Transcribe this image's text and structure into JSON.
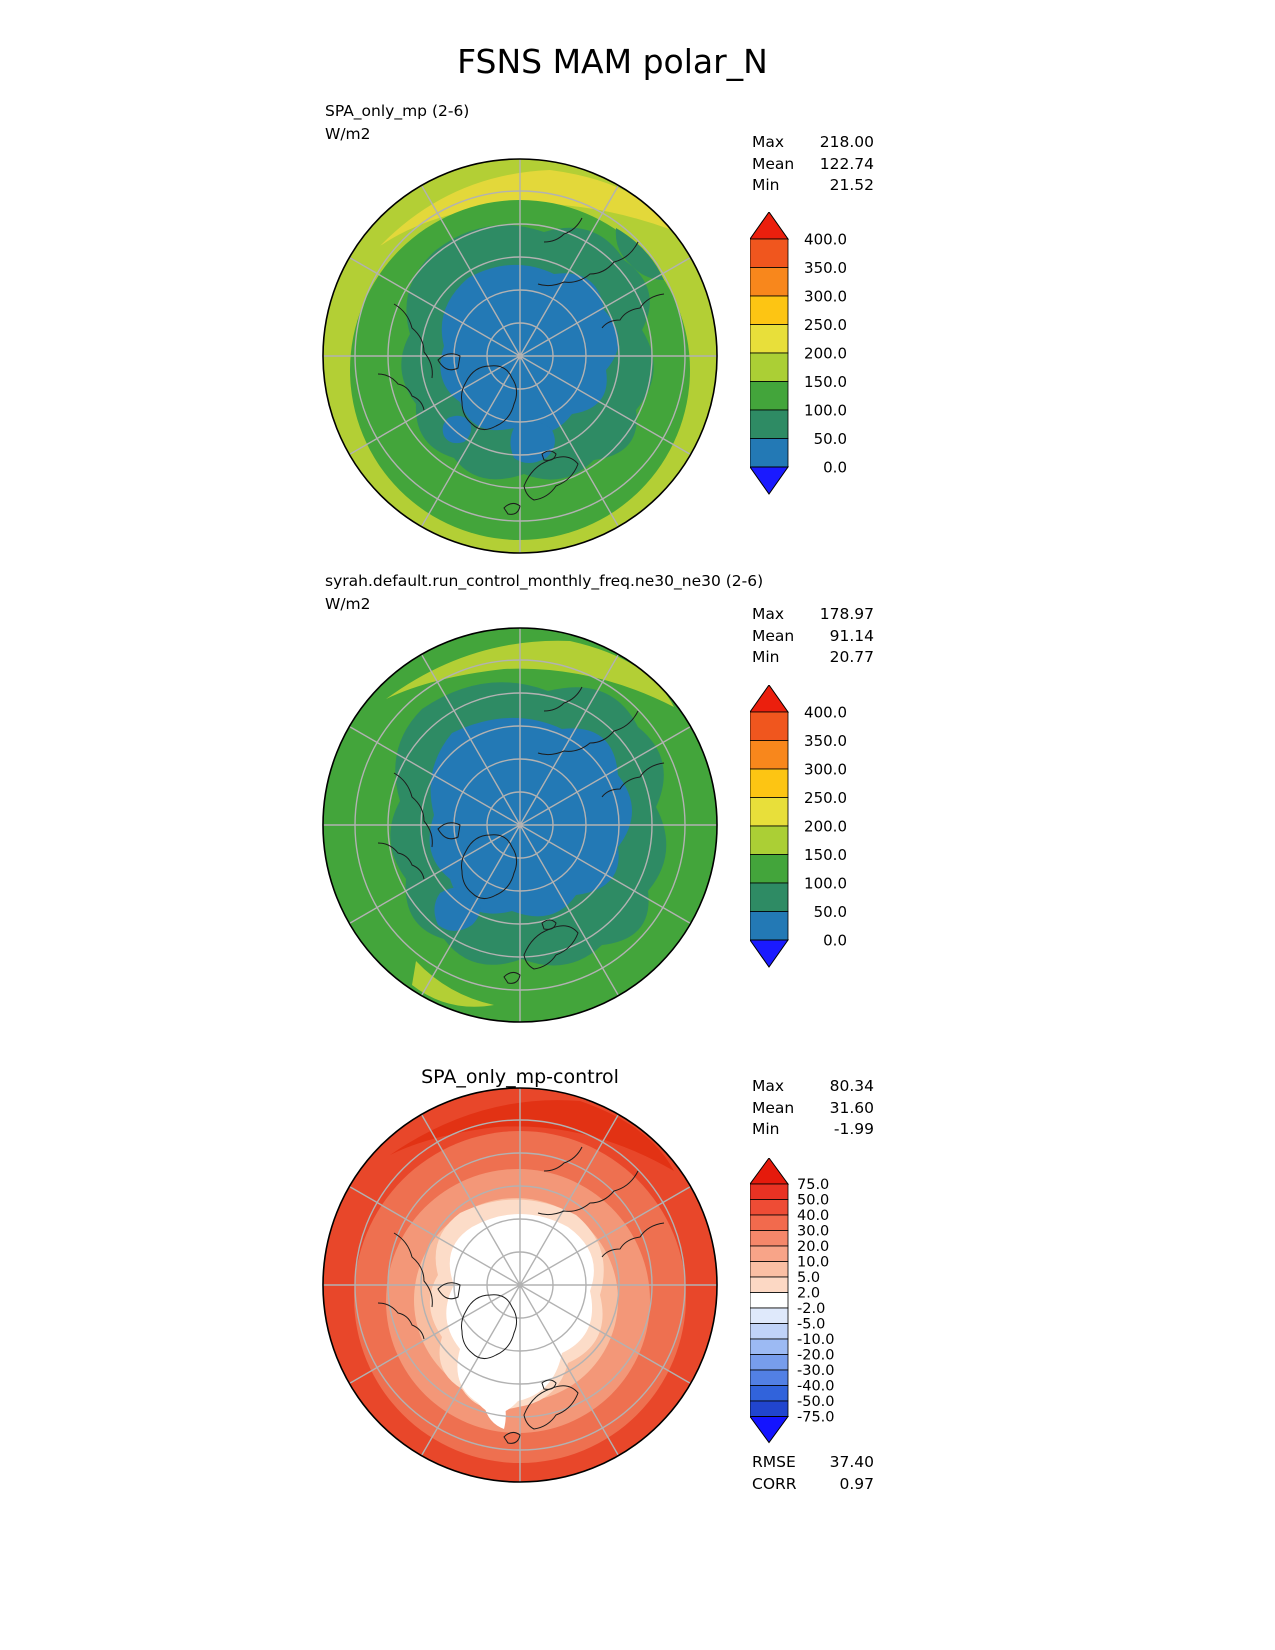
{
  "title": "FSNS MAM polar_N",
  "panel1": {
    "label": "SPA_only_mp (2-6)",
    "units": "W/m2",
    "stats": {
      "max_label": "Max",
      "max_value": "218.00",
      "mean_label": "Mean",
      "mean_value": "122.74",
      "min_label": "Min",
      "min_value": "21.52"
    },
    "colorbar": {
      "ticks": [
        "400.0",
        "350.0",
        "300.0",
        "250.0",
        "200.0",
        "150.0",
        "100.0",
        "50.0",
        "0.0"
      ],
      "colors": [
        "#f0561e",
        "#f8871c",
        "#fdc513",
        "#e8df3a",
        "#abcf35",
        "#43a53b",
        "#2e8b64",
        "#2379b5"
      ],
      "arrow_top": "#eb1f0d",
      "arrow_bottom": "#1a1aff"
    }
  },
  "panel2": {
    "label": "syrah.default.run_control_monthly_freq.ne30_ne30 (2-6)",
    "units": "W/m2",
    "stats": {
      "max_label": "Max",
      "max_value": "178.97",
      "mean_label": "Mean",
      "mean_value": "91.14",
      "min_label": "Min",
      "min_value": "20.77"
    },
    "colorbar": {
      "ticks": [
        "400.0",
        "350.0",
        "300.0",
        "250.0",
        "200.0",
        "150.0",
        "100.0",
        "50.0",
        "0.0"
      ],
      "colors": [
        "#f0561e",
        "#f8871c",
        "#fdc513",
        "#e8df3a",
        "#abcf35",
        "#43a53b",
        "#2e8b64",
        "#2379b5"
      ],
      "arrow_top": "#eb1f0d",
      "arrow_bottom": "#1a1aff"
    }
  },
  "panel3": {
    "title": "SPA_only_mp-control",
    "stats": {
      "max_label": "Max",
      "max_value": "80.34",
      "mean_label": "Mean",
      "mean_value": "31.60",
      "min_label": "Min",
      "min_value": "-1.99"
    },
    "colorbar": {
      "ticks": [
        "75.0",
        "50.0",
        "40.0",
        "30.0",
        "20.0",
        "10.0",
        "5.0",
        "2.0",
        "-2.0",
        "-5.0",
        "-10.0",
        "-20.0",
        "-30.0",
        "-40.0",
        "-50.0",
        "-75.0"
      ],
      "colors": [
        "#e93223",
        "#ee4c35",
        "#f26a4d",
        "#f5876a",
        "#f8a488",
        "#fabfa4",
        "#fcd8c4",
        "#ffffff",
        "#dfe9fb",
        "#c0d3f8",
        "#9cbaf3",
        "#779dec",
        "#5280e4",
        "#3163db",
        "#2145ce"
      ],
      "arrow_top": "#e51a0c",
      "arrow_bottom": "#1414ff"
    },
    "metrics": {
      "rmse_label": "RMSE",
      "rmse_value": "37.40",
      "corr_label": "CORR",
      "corr_value": "0.97"
    }
  },
  "chart_data": {
    "type": "heatmap",
    "subtype": "north-polar-stereographic-contour-maps",
    "title": "FSNS MAM polar_N",
    "variable": "FSNS",
    "season": "MAM",
    "region": "polar_N",
    "units": "W/m2",
    "legend_position": "right",
    "panels": [
      {
        "name": "SPA_only_mp (2-6)",
        "max": 218.0,
        "mean": 122.74,
        "min": 21.52,
        "contour_levels": [
          0,
          50,
          100,
          150,
          200,
          250,
          300,
          350,
          400
        ],
        "palette_low_to_high": [
          "#1a1aff",
          "#2379b5",
          "#2e8b64",
          "#43a53b",
          "#abcf35",
          "#e8df3a",
          "#fdc513",
          "#f8871c",
          "#f0561e",
          "#eb1f0d"
        ]
      },
      {
        "name": "syrah.default.run_control_monthly_freq.ne30_ne30 (2-6)",
        "max": 178.97,
        "mean": 91.14,
        "min": 20.77,
        "contour_levels": [
          0,
          50,
          100,
          150,
          200,
          250,
          300,
          350,
          400
        ],
        "palette_low_to_high": [
          "#1a1aff",
          "#2379b5",
          "#2e8b64",
          "#43a53b",
          "#abcf35",
          "#e8df3a",
          "#fdc513",
          "#f8871c",
          "#f0561e",
          "#eb1f0d"
        ]
      },
      {
        "name": "SPA_only_mp-control",
        "max": 80.34,
        "mean": 31.6,
        "min": -1.99,
        "rmse": 37.4,
        "corr": 0.97,
        "contour_levels": [
          -75,
          -50,
          -40,
          -30,
          -20,
          -10,
          -5,
          -2,
          2,
          5,
          10,
          20,
          30,
          40,
          50,
          75
        ],
        "palette_low_to_high": [
          "#1414ff",
          "#2145ce",
          "#3163db",
          "#5280e4",
          "#779dec",
          "#9cbaf3",
          "#c0d3f8",
          "#dfe9fb",
          "#ffffff",
          "#fcd8c4",
          "#fabfa4",
          "#f8a488",
          "#f5876a",
          "#f26a4d",
          "#ee4c35",
          "#e93223",
          "#e51a0c"
        ]
      }
    ]
  }
}
